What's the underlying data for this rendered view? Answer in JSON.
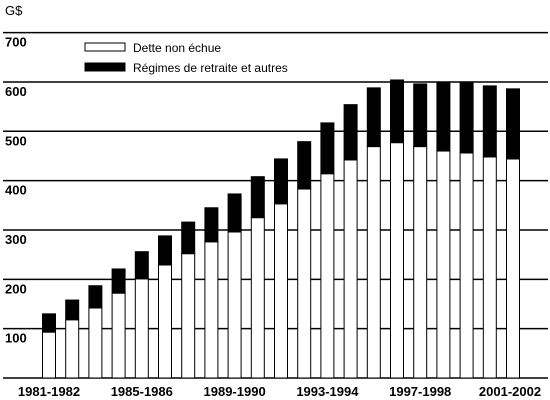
{
  "chart_data": {
    "type": "stacked_bar",
    "y_axis_label": "G$",
    "categories": [
      "1981-1982",
      null,
      null,
      null,
      "1985-1986",
      null,
      null,
      null,
      "1989-1990",
      null,
      null,
      null,
      "1993-1994",
      null,
      null,
      null,
      "1997-1998",
      null,
      null,
      null,
      "2001-2002"
    ],
    "series": [
      {
        "name": "Dette non échue",
        "color": "#ffffff",
        "values": [
          93,
          118,
          142,
          172,
          201,
          229,
          252,
          276,
          296,
          325,
          353,
          383,
          414,
          442,
          469,
          477,
          469,
          460,
          456,
          448,
          444
        ]
      },
      {
        "name": "Régimes de retraite et autres",
        "color": "#000000",
        "values": [
          37,
          40,
          45,
          49,
          55,
          59,
          64,
          69,
          77,
          83,
          91,
          96,
          103,
          112,
          119,
          127,
          127,
          138,
          144,
          144,
          142
        ]
      }
    ],
    "ylim": [
      0,
      760
    ],
    "yticks": [
      100,
      200,
      300,
      400,
      500,
      600,
      700
    ],
    "grid": true,
    "legend": "top-left"
  }
}
